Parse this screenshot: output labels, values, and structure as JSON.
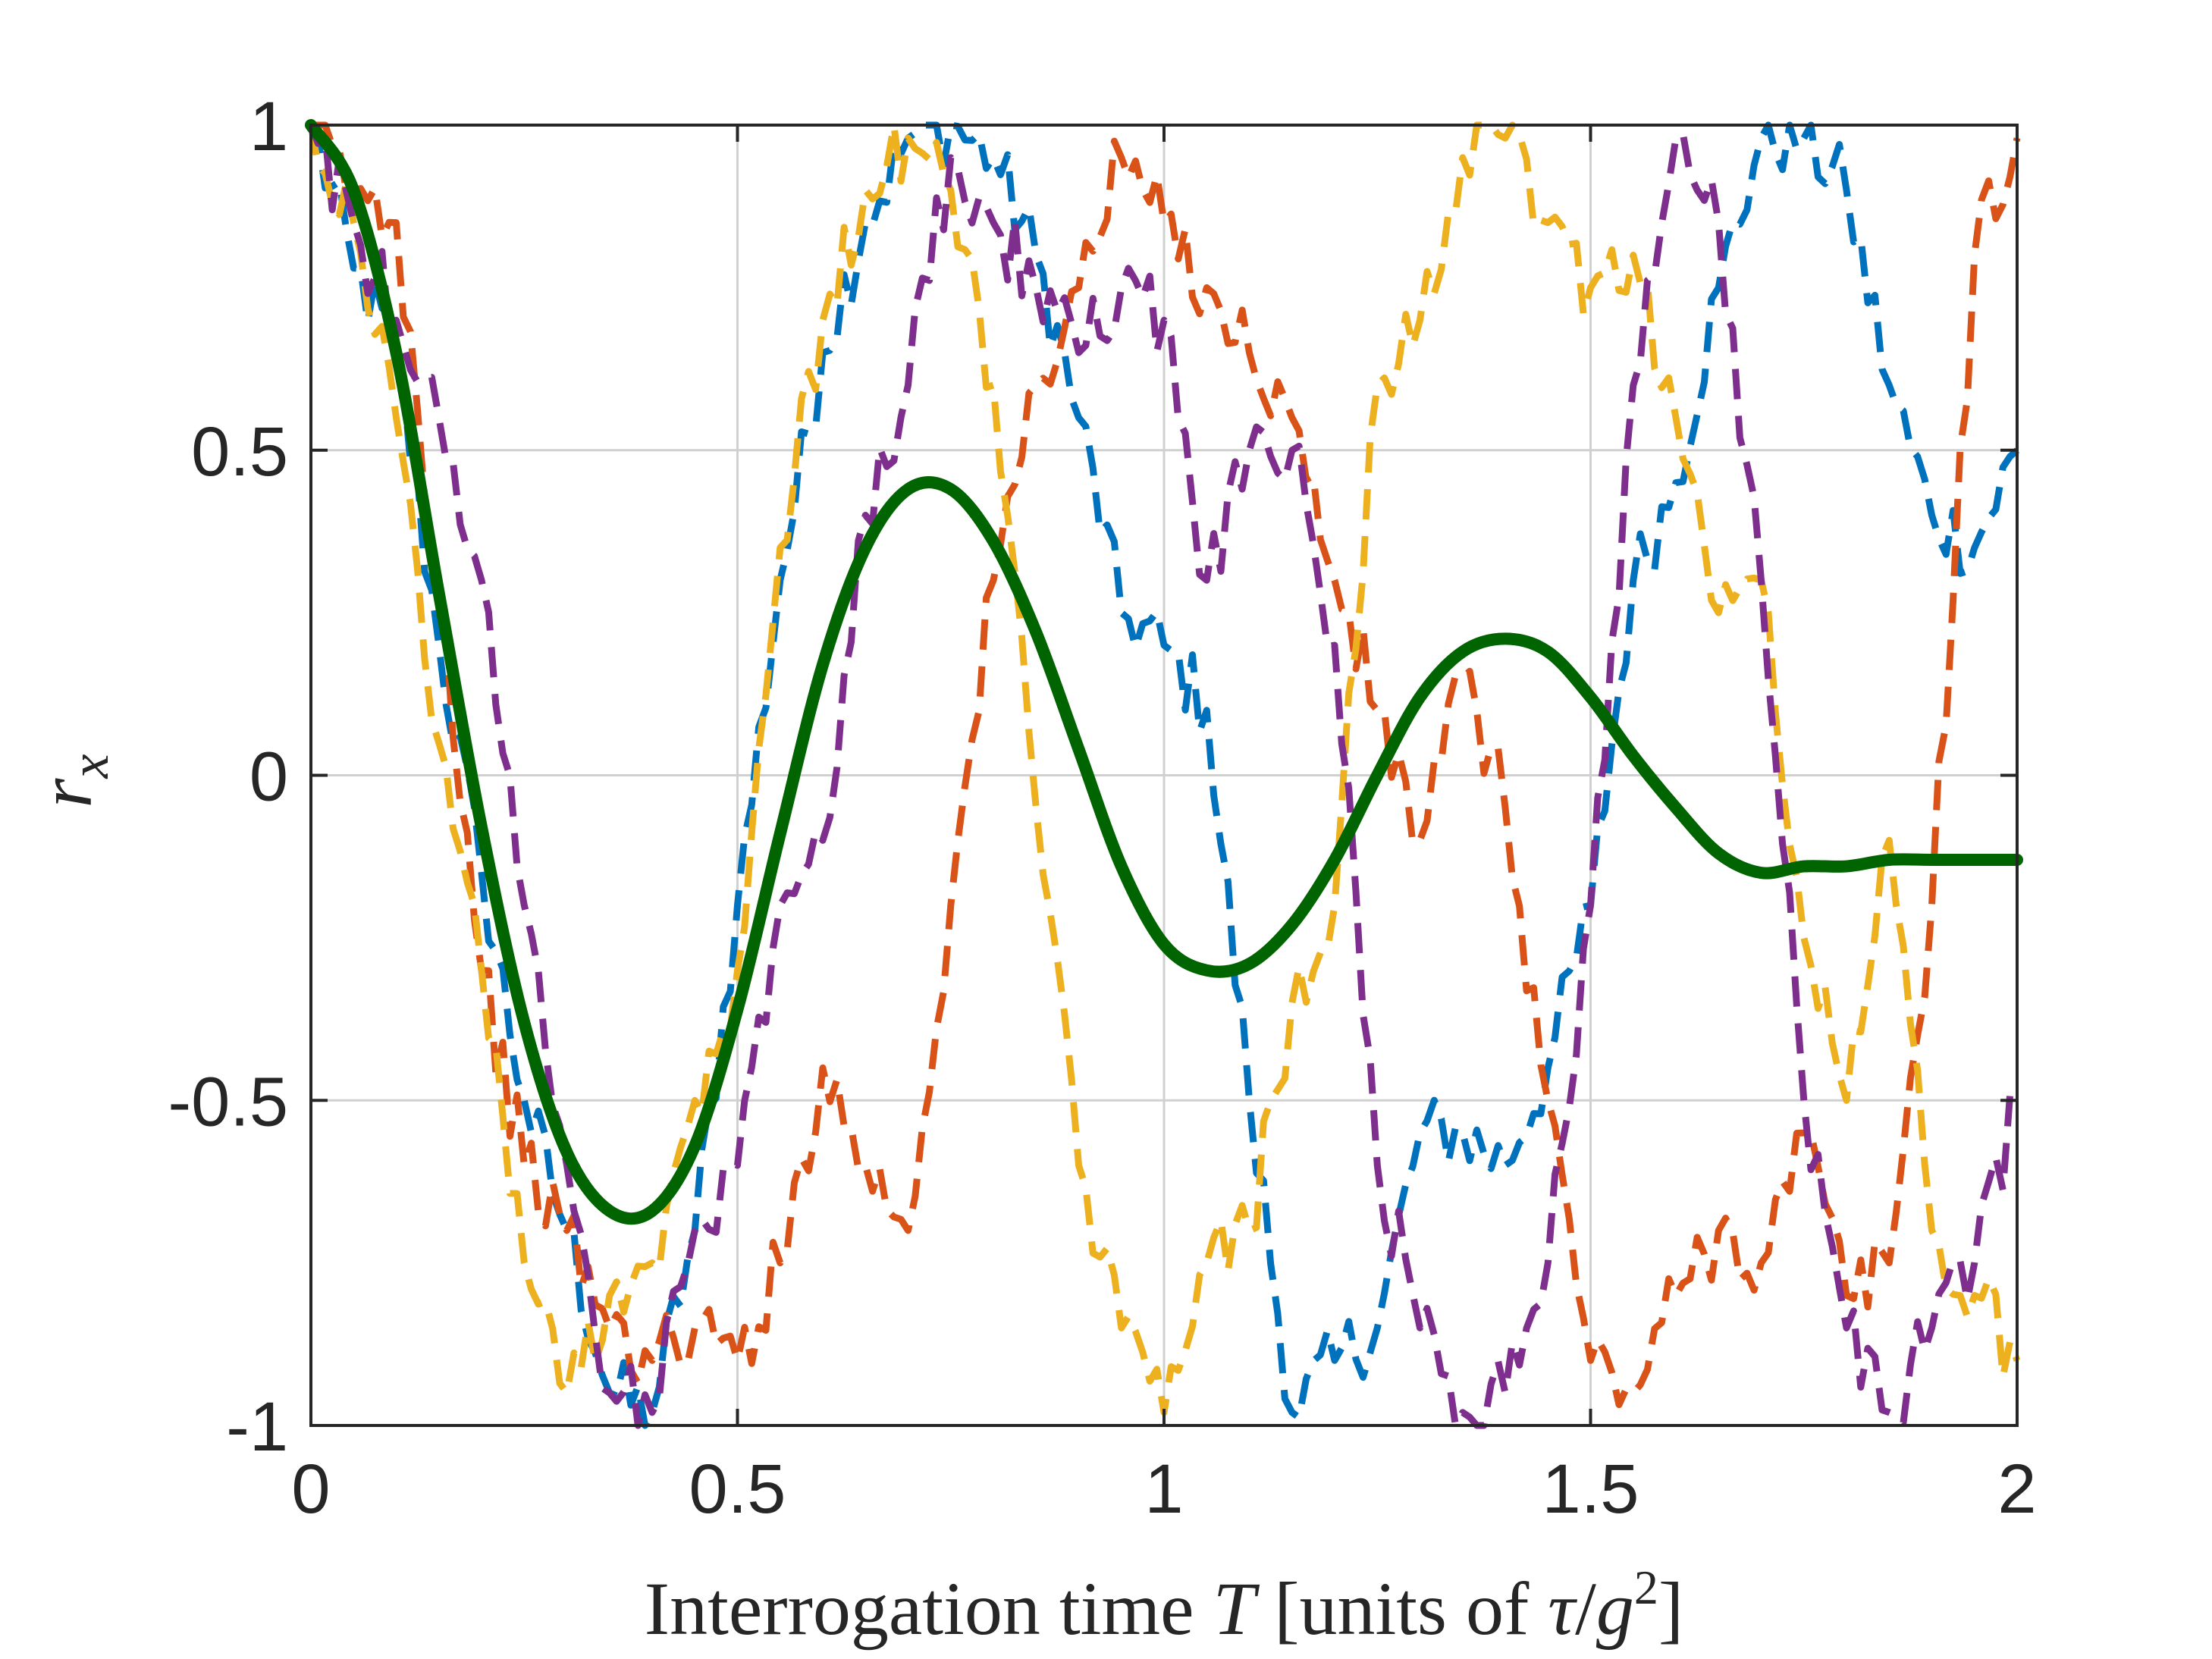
{
  "chart_data": {
    "type": "line",
    "title": "",
    "xlabel": {
      "prefix": "Interrogation time ",
      "var": "T",
      "suffix": " [units of ",
      "tau": "τ",
      "slash": "/",
      "g": "g",
      "exp": "2",
      "close": "]"
    },
    "ylabel": {
      "var": "r",
      "sub": "x"
    },
    "xlim": [
      0,
      2
    ],
    "ylim": [
      -1,
      1
    ],
    "grid": true,
    "legend": "none",
    "xticks": [
      0,
      0.5,
      1,
      1.5,
      2
    ],
    "xtick_labels": [
      "0",
      "0.5",
      "1",
      "1.5",
      "2"
    ],
    "yticks": [
      -1,
      -0.5,
      0,
      0.5,
      1
    ],
    "ytick_labels": [
      "-1",
      "-0.5",
      "0",
      "0.5",
      "1"
    ],
    "series": [
      {
        "name": "trajectory 1",
        "style": "dashed",
        "color": "#0072BD",
        "x": [
          0,
          0.05,
          0.1,
          0.15,
          0.2,
          0.25,
          0.3,
          0.35,
          0.4,
          0.45,
          0.5,
          0.55,
          0.6,
          0.65,
          0.7,
          0.75,
          0.8,
          0.85,
          0.9,
          0.95,
          1.0,
          1.05,
          1.1,
          1.15,
          1.2,
          1.25,
          1.3,
          1.35,
          1.4,
          1.45,
          1.5,
          1.55,
          1.6,
          1.65,
          1.7,
          1.75,
          1.8,
          1.85,
          1.9,
          1.95,
          2.0
        ],
        "y": [
          1.0,
          0.78,
          0.65,
          0.2,
          -0.15,
          -0.5,
          -0.7,
          -0.95,
          -0.98,
          -0.7,
          -0.2,
          0.3,
          0.65,
          0.85,
          0.98,
          1.0,
          0.95,
          0.8,
          0.55,
          0.25,
          0.2,
          0.1,
          -0.5,
          -0.98,
          -0.9,
          -0.85,
          -0.55,
          -0.55,
          -0.6,
          -0.45,
          -0.2,
          0.3,
          0.45,
          0.75,
          0.98,
          0.98,
          0.9,
          0.6,
          0.4,
          0.35,
          0.5
        ]
      },
      {
        "name": "trajectory 2",
        "style": "dashed",
        "color": "#D95319",
        "x": [
          0,
          0.05,
          0.1,
          0.15,
          0.2,
          0.25,
          0.3,
          0.35,
          0.4,
          0.45,
          0.5,
          0.55,
          0.6,
          0.65,
          0.7,
          0.75,
          0.8,
          0.85,
          0.9,
          0.95,
          1.0,
          1.05,
          1.1,
          1.15,
          1.2,
          1.25,
          1.3,
          1.35,
          1.4,
          1.45,
          1.5,
          1.55,
          1.6,
          1.65,
          1.7,
          1.75,
          1.8,
          1.85,
          1.9,
          1.95,
          2.0
        ],
        "y": [
          1.0,
          0.9,
          0.85,
          0.3,
          -0.3,
          -0.6,
          -0.7,
          -0.85,
          -0.9,
          -0.85,
          -0.9,
          -0.75,
          -0.45,
          -0.6,
          -0.7,
          -0.2,
          0.3,
          0.6,
          0.75,
          0.95,
          0.85,
          0.75,
          0.65,
          0.55,
          0.3,
          0.1,
          -0.1,
          0.15,
          -0.05,
          -0.5,
          -0.9,
          -0.95,
          -0.8,
          -0.7,
          -0.75,
          -0.55,
          -0.8,
          -0.75,
          -0.2,
          0.8,
          0.98
        ]
      },
      {
        "name": "trajectory 3",
        "style": "dashed",
        "color": "#EDB120",
        "x": [
          0,
          0.05,
          0.1,
          0.15,
          0.2,
          0.25,
          0.3,
          0.35,
          0.4,
          0.45,
          0.5,
          0.55,
          0.6,
          0.65,
          0.7,
          0.75,
          0.8,
          0.85,
          0.9,
          0.95,
          1.0,
          1.05,
          1.1,
          1.15,
          1.2,
          1.25,
          1.3,
          1.35,
          1.4,
          1.45,
          1.5,
          1.55,
          1.6,
          1.65,
          1.7,
          1.75,
          1.8,
          1.85,
          1.9,
          1.95,
          2.0
        ],
        "y": [
          1.0,
          0.85,
          0.55,
          0.05,
          -0.3,
          -0.75,
          -0.95,
          -0.8,
          -0.75,
          -0.5,
          -0.3,
          0.35,
          0.7,
          0.9,
          0.98,
          0.9,
          0.6,
          -0.05,
          -0.6,
          -0.85,
          -0.98,
          -0.75,
          -0.7,
          -0.35,
          -0.2,
          0.6,
          0.7,
          0.95,
          0.98,
          0.85,
          0.75,
          0.8,
          0.55,
          0.25,
          0.3,
          -0.25,
          -0.5,
          -0.1,
          -0.7,
          -0.8,
          -0.9
        ]
      },
      {
        "name": "trajectory 4",
        "style": "dashed",
        "color": "#7E2F8E",
        "x": [
          0,
          0.05,
          0.1,
          0.15,
          0.2,
          0.25,
          0.3,
          0.35,
          0.4,
          0.45,
          0.5,
          0.55,
          0.6,
          0.65,
          0.7,
          0.75,
          0.8,
          0.85,
          0.9,
          0.95,
          1.0,
          1.05,
          1.1,
          1.15,
          1.2,
          1.25,
          1.3,
          1.35,
          1.4,
          1.45,
          1.5,
          1.55,
          1.6,
          1.65,
          1.7,
          1.75,
          1.8,
          1.85,
          1.9,
          1.95,
          2.0
        ],
        "y": [
          1.0,
          0.85,
          0.7,
          0.55,
          0.3,
          -0.2,
          -0.6,
          -0.95,
          -0.98,
          -0.7,
          -0.6,
          -0.2,
          -0.1,
          0.4,
          0.6,
          0.95,
          0.85,
          0.75,
          0.65,
          0.75,
          0.7,
          0.3,
          0.5,
          0.5,
          0.2,
          -0.6,
          -0.85,
          -0.98,
          -0.95,
          -0.75,
          -0.2,
          0.6,
          0.98,
          0.85,
          0.3,
          -0.5,
          -0.85,
          -0.98,
          -0.85,
          -0.75,
          -0.5
        ]
      },
      {
        "name": "mean",
        "style": "solid",
        "color": "#006400",
        "x": [
          0,
          0.05,
          0.1,
          0.15,
          0.2,
          0.25,
          0.3,
          0.35,
          0.4,
          0.45,
          0.5,
          0.55,
          0.6,
          0.65,
          0.7,
          0.75,
          0.8,
          0.85,
          0.9,
          0.95,
          1.0,
          1.05,
          1.1,
          1.15,
          1.2,
          1.25,
          1.3,
          1.35,
          1.4,
          1.45,
          1.5,
          1.55,
          1.6,
          1.65,
          1.7,
          1.75,
          1.8,
          1.85,
          1.9,
          1.95,
          2.0
        ],
        "y": [
          1.0,
          0.9,
          0.65,
          0.28,
          -0.08,
          -0.38,
          -0.58,
          -0.67,
          -0.67,
          -0.57,
          -0.36,
          -0.09,
          0.17,
          0.35,
          0.44,
          0.44,
          0.36,
          0.22,
          0.04,
          -0.14,
          -0.26,
          -0.3,
          -0.29,
          -0.23,
          -0.13,
          0.0,
          0.12,
          0.19,
          0.21,
          0.19,
          0.12,
          0.03,
          -0.05,
          -0.12,
          -0.15,
          -0.14,
          -0.14,
          -0.13,
          -0.13,
          -0.13,
          -0.13
        ]
      }
    ]
  }
}
